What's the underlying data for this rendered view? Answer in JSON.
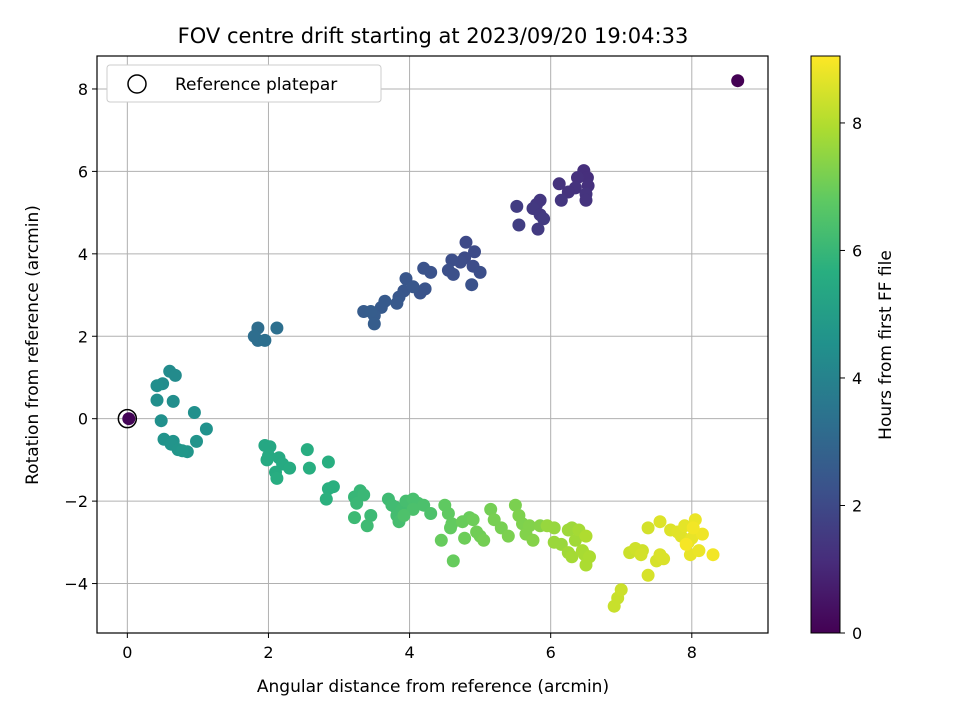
{
  "chart_data": {
    "type": "scatter",
    "title": "FOV centre drift starting at 2023/09/20 19:04:33",
    "xlabel": "Angular distance from reference (arcmin)",
    "ylabel": "Rotation from reference (arcmin)",
    "xlim": [
      -0.43,
      9.08
    ],
    "ylim": [
      -5.2,
      8.8
    ],
    "xticks": [
      0,
      2,
      4,
      6,
      8
    ],
    "yticks": [
      -4,
      -2,
      0,
      2,
      4,
      6,
      8
    ],
    "grid": true,
    "legend": {
      "placement": "top-left",
      "entries": [
        "Reference platepar"
      ]
    },
    "reference_point": {
      "x": 0,
      "y": 0,
      "label": "Reference platepar"
    },
    "colorbar": {
      "label": "Hours from first FF file",
      "colormap": "viridis",
      "range": [
        0,
        9.05
      ],
      "ticks": [
        0,
        2,
        4,
        6,
        8
      ]
    },
    "series": [
      {
        "points": [
          [
            8.65,
            8.2,
            0.0
          ],
          [
            0.02,
            0.0,
            0.1
          ],
          [
            6.47,
            6.02,
            1.2
          ],
          [
            6.52,
            5.85,
            1.2
          ],
          [
            6.38,
            5.85,
            1.25
          ],
          [
            6.53,
            5.65,
            1.25
          ],
          [
            6.35,
            5.6,
            1.3
          ],
          [
            6.25,
            5.5,
            1.3
          ],
          [
            6.12,
            5.7,
            1.3
          ],
          [
            6.5,
            5.45,
            1.35
          ],
          [
            6.5,
            5.3,
            1.35
          ],
          [
            6.15,
            5.3,
            1.4
          ],
          [
            5.85,
            5.3,
            1.45
          ],
          [
            5.8,
            5.2,
            1.45
          ],
          [
            5.75,
            5.1,
            1.5
          ],
          [
            5.85,
            4.95,
            1.5
          ],
          [
            5.9,
            4.85,
            1.55
          ],
          [
            5.82,
            4.6,
            1.55
          ],
          [
            5.52,
            5.15,
            1.6
          ],
          [
            5.55,
            4.7,
            1.65
          ],
          [
            4.8,
            4.28,
            2.0
          ],
          [
            4.92,
            4.05,
            2.05
          ],
          [
            4.78,
            3.9,
            2.05
          ],
          [
            4.72,
            3.8,
            2.1
          ],
          [
            4.9,
            3.7,
            2.1
          ],
          [
            5.0,
            3.55,
            2.15
          ],
          [
            4.6,
            3.85,
            2.15
          ],
          [
            4.55,
            3.6,
            2.2
          ],
          [
            4.62,
            3.5,
            2.2
          ],
          [
            4.88,
            3.25,
            2.25
          ],
          [
            4.3,
            3.55,
            2.3
          ],
          [
            4.2,
            3.65,
            2.3
          ],
          [
            4.22,
            3.15,
            2.35
          ],
          [
            4.15,
            3.05,
            2.35
          ],
          [
            3.95,
            3.4,
            2.4
          ],
          [
            3.92,
            3.1,
            2.4
          ],
          [
            4.05,
            3.2,
            2.45
          ],
          [
            3.85,
            2.95,
            2.45
          ],
          [
            3.82,
            2.8,
            2.5
          ],
          [
            3.65,
            2.85,
            2.55
          ],
          [
            3.6,
            2.7,
            2.55
          ],
          [
            3.5,
            2.5,
            2.6
          ],
          [
            3.35,
            2.6,
            2.6
          ],
          [
            3.45,
            2.6,
            2.65
          ],
          [
            3.5,
            2.3,
            2.65
          ],
          [
            1.85,
            2.2,
            3.2
          ],
          [
            1.8,
            2.0,
            3.25
          ],
          [
            1.85,
            1.9,
            3.25
          ],
          [
            1.95,
            1.9,
            3.3
          ],
          [
            2.12,
            2.2,
            3.3
          ],
          [
            0.6,
            1.15,
            4.3
          ],
          [
            0.68,
            1.05,
            4.3
          ],
          [
            0.5,
            0.85,
            4.35
          ],
          [
            0.42,
            0.8,
            4.4
          ],
          [
            0.65,
            0.42,
            4.4
          ],
          [
            0.42,
            0.45,
            4.45
          ],
          [
            0.95,
            0.15,
            4.5
          ],
          [
            0.48,
            -0.05,
            4.5
          ],
          [
            1.12,
            -0.25,
            4.55
          ],
          [
            0.52,
            -0.5,
            4.6
          ],
          [
            0.65,
            -0.55,
            4.6
          ],
          [
            0.98,
            -0.55,
            4.65
          ],
          [
            0.62,
            -0.62,
            4.65
          ],
          [
            0.72,
            -0.75,
            4.7
          ],
          [
            0.85,
            -0.8,
            4.7
          ],
          [
            0.78,
            -0.78,
            4.75
          ],
          [
            1.95,
            -0.65,
            5.4
          ],
          [
            2.02,
            -0.68,
            5.4
          ],
          [
            2.0,
            -0.9,
            5.45
          ],
          [
            2.15,
            -0.95,
            5.45
          ],
          [
            1.98,
            -1.0,
            5.5
          ],
          [
            2.2,
            -1.1,
            5.5
          ],
          [
            2.3,
            -1.2,
            5.55
          ],
          [
            2.1,
            -1.3,
            5.55
          ],
          [
            2.12,
            -1.45,
            5.6
          ],
          [
            2.55,
            -0.75,
            5.6
          ],
          [
            2.58,
            -1.2,
            5.65
          ],
          [
            2.85,
            -1.05,
            5.65
          ],
          [
            2.85,
            -1.7,
            5.7
          ],
          [
            2.92,
            -1.65,
            5.7
          ],
          [
            2.82,
            -1.95,
            5.75
          ],
          [
            3.3,
            -1.75,
            6.0
          ],
          [
            3.22,
            -1.9,
            6.0
          ],
          [
            3.35,
            -1.85,
            6.05
          ],
          [
            3.25,
            -2.05,
            6.05
          ],
          [
            3.22,
            -2.4,
            6.1
          ],
          [
            3.45,
            -2.35,
            6.1
          ],
          [
            3.4,
            -2.6,
            6.15
          ],
          [
            3.7,
            -1.95,
            6.15
          ],
          [
            3.75,
            -2.1,
            6.2
          ],
          [
            3.8,
            -2.15,
            6.2
          ],
          [
            3.9,
            -2.2,
            6.25
          ],
          [
            3.82,
            -2.35,
            6.25
          ],
          [
            3.85,
            -2.5,
            6.3
          ],
          [
            3.95,
            -2.0,
            6.3
          ],
          [
            4.05,
            -1.95,
            6.35
          ],
          [
            4.12,
            -2.05,
            6.35
          ],
          [
            4.05,
            -2.2,
            6.4
          ],
          [
            4.2,
            -2.1,
            6.4
          ],
          [
            4.3,
            -2.3,
            6.45
          ],
          [
            3.92,
            -2.35,
            6.45
          ],
          [
            4.5,
            -2.1,
            6.8
          ],
          [
            4.55,
            -2.3,
            6.8
          ],
          [
            4.6,
            -2.55,
            6.85
          ],
          [
            4.58,
            -2.65,
            6.85
          ],
          [
            4.45,
            -2.95,
            6.9
          ],
          [
            4.62,
            -3.45,
            6.9
          ],
          [
            4.75,
            -2.5,
            6.95
          ],
          [
            4.85,
            -2.4,
            6.95
          ],
          [
            4.9,
            -2.45,
            7.0
          ],
          [
            4.78,
            -2.9,
            7.0
          ],
          [
            4.95,
            -2.75,
            7.05
          ],
          [
            5.0,
            -2.85,
            7.05
          ],
          [
            5.05,
            -2.95,
            7.1
          ],
          [
            5.15,
            -2.2,
            7.1
          ],
          [
            5.2,
            -2.45,
            7.15
          ],
          [
            5.3,
            -2.65,
            7.15
          ],
          [
            5.4,
            -2.85,
            7.2
          ],
          [
            5.5,
            -2.1,
            7.2
          ],
          [
            5.55,
            -2.35,
            7.25
          ],
          [
            5.6,
            -2.55,
            7.25
          ],
          [
            5.65,
            -2.8,
            7.3
          ],
          [
            5.7,
            -2.6,
            7.3
          ],
          [
            5.75,
            -2.95,
            7.35
          ],
          [
            5.85,
            -2.6,
            7.35
          ],
          [
            5.95,
            -2.6,
            7.6
          ],
          [
            6.05,
            -2.65,
            7.6
          ],
          [
            6.05,
            -3.0,
            7.65
          ],
          [
            6.15,
            -3.05,
            7.65
          ],
          [
            6.25,
            -2.7,
            7.7
          ],
          [
            6.3,
            -2.65,
            7.7
          ],
          [
            6.35,
            -2.95,
            7.75
          ],
          [
            6.25,
            -3.25,
            7.75
          ],
          [
            6.3,
            -3.35,
            7.8
          ],
          [
            6.4,
            -2.7,
            7.8
          ],
          [
            6.45,
            -3.2,
            7.85
          ],
          [
            6.48,
            -3.3,
            7.85
          ],
          [
            6.5,
            -3.55,
            7.9
          ],
          [
            6.55,
            -3.35,
            7.9
          ],
          [
            6.5,
            -2.85,
            7.95
          ],
          [
            6.9,
            -4.55,
            8.3
          ],
          [
            6.95,
            -4.35,
            8.3
          ],
          [
            7.0,
            -4.15,
            8.35
          ],
          [
            7.12,
            -3.25,
            8.35
          ],
          [
            7.2,
            -3.15,
            8.4
          ],
          [
            7.3,
            -3.2,
            8.4
          ],
          [
            7.28,
            -3.3,
            8.45
          ],
          [
            7.38,
            -2.65,
            8.45
          ],
          [
            7.38,
            -3.8,
            8.5
          ],
          [
            7.5,
            -3.45,
            8.5
          ],
          [
            7.55,
            -3.3,
            8.55
          ],
          [
            7.6,
            -3.4,
            8.55
          ],
          [
            7.55,
            -2.5,
            8.6
          ],
          [
            7.7,
            -2.7,
            8.6
          ],
          [
            7.8,
            -2.75,
            8.65
          ],
          [
            7.85,
            -2.85,
            8.65
          ],
          [
            7.9,
            -2.6,
            8.7
          ],
          [
            7.95,
            -3.0,
            8.7
          ],
          [
            8.0,
            -2.9,
            8.75
          ],
          [
            7.98,
            -3.3,
            8.75
          ],
          [
            8.05,
            -2.45,
            8.8
          ],
          [
            8.1,
            -3.2,
            8.8
          ],
          [
            8.15,
            -2.8,
            8.85
          ],
          [
            8.3,
            -3.3,
            8.9
          ],
          [
            8.02,
            -2.65,
            8.9
          ],
          [
            7.92,
            -3.05,
            8.95
          ]
        ]
      }
    ]
  }
}
